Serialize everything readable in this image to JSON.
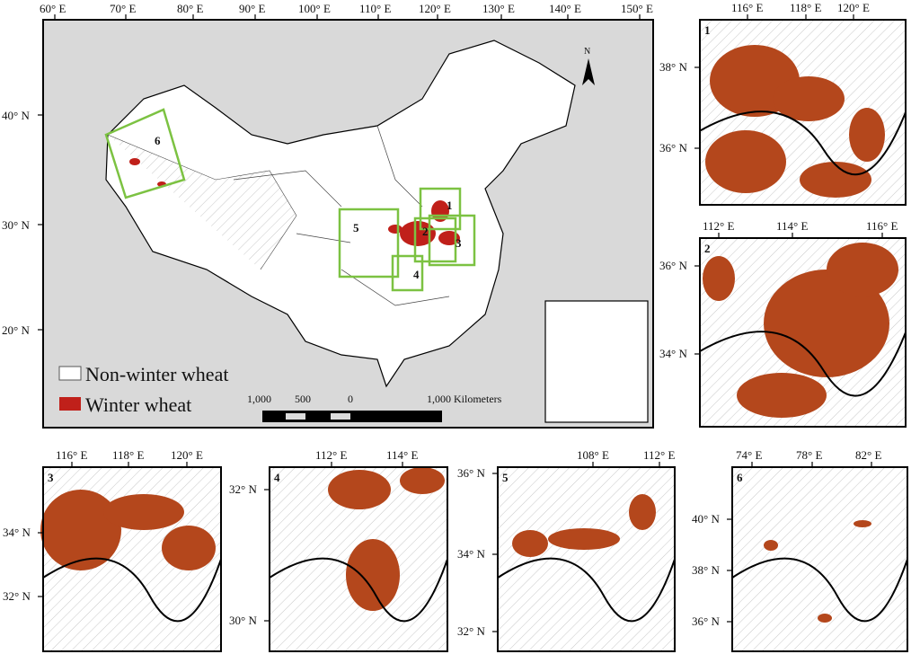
{
  "main_map": {
    "lon_labels": [
      "60° E",
      "70° E",
      "80° E",
      "90° E",
      "100° E",
      "110° E",
      "120° E",
      "130° E",
      "140° E",
      "150° E"
    ],
    "lat_labels": [
      "40° N",
      "30° N",
      "20° N"
    ],
    "box_labels": [
      "1",
      "2",
      "3",
      "4",
      "5",
      "6"
    ],
    "north_label": "N",
    "legend": {
      "non_winter": "Non-winter wheat",
      "winter": "Winter wheat"
    },
    "scale": {
      "l1": "1,000",
      "l2": "500",
      "l3": "0",
      "l4": "1,000 Kilometers"
    }
  },
  "panels": [
    {
      "id": "1",
      "lon": [
        "116° E",
        "118° E",
        "120° E"
      ],
      "lat": [
        "38° N",
        "36° N"
      ]
    },
    {
      "id": "2",
      "lon": [
        "112° E",
        "114° E",
        "116° E"
      ],
      "lat": [
        "36° N",
        "34° N"
      ]
    },
    {
      "id": "3",
      "lon": [
        "116° E",
        "118° E",
        "120° E"
      ],
      "lat": [
        "34° N",
        "32° N"
      ]
    },
    {
      "id": "4",
      "lon": [
        "112° E",
        "114° E"
      ],
      "lat": [
        "32° N",
        "30° N"
      ]
    },
    {
      "id": "5",
      "lon": [
        "108° E",
        "112° E"
      ],
      "lat": [
        "36° N",
        "34° N",
        "32° N"
      ]
    },
    {
      "id": "6",
      "lon": [
        "74° E",
        "78° E",
        "82° E"
      ],
      "lat": [
        "40° N",
        "38° N",
        "36° N"
      ]
    }
  ],
  "colors": {
    "winter_wheat_main": "#c0201a",
    "winter_wheat_panel": "#b4471c",
    "box": "#7cc242",
    "land_bg": "#d9d9d9"
  }
}
